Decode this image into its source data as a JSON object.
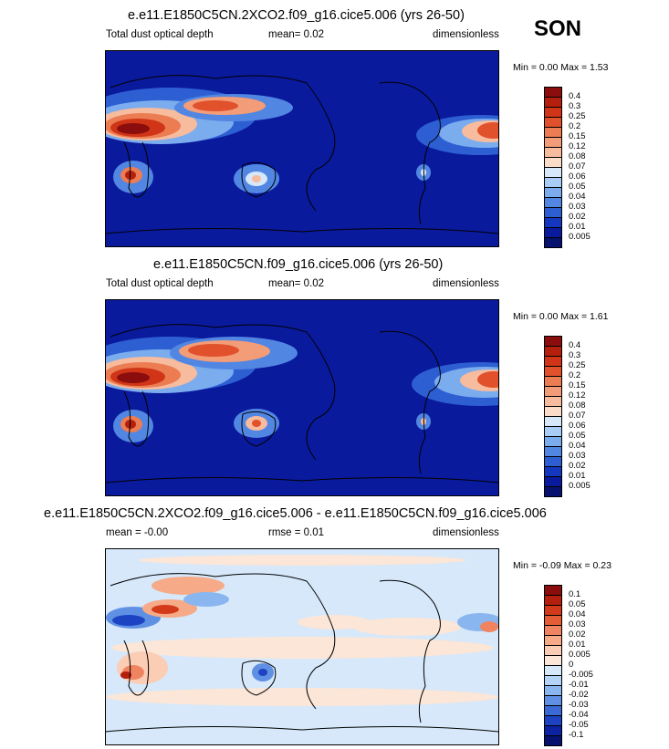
{
  "season": "SON",
  "panels": [
    {
      "title": "e.e11.E1850C5CN.2XCO2.f09_g16.cice5.006 (yrs 26-50)",
      "left": "Total dust optical depth",
      "center": "mean=   0.02",
      "right": "dimensionless",
      "minmax": "Min =   0.00 Max =   1.53",
      "levels": [
        "0.4",
        "0.3",
        "0.25",
        "0.2",
        "0.15",
        "0.12",
        "0.08",
        "0.07",
        "0.06",
        "0.05",
        "0.04",
        "0.03",
        "0.02",
        "0.01",
        "0.005"
      ],
      "colors": [
        "#8b0d0d",
        "#b5200e",
        "#cf3516",
        "#e0512c",
        "#ec7c52",
        "#f39c78",
        "#f7bb9e",
        "#fbdcc8",
        "#d6e8fa",
        "#a9cdf6",
        "#7bacee",
        "#5186e2",
        "#2d5fd3",
        "#1437c0",
        "#0a1a9c",
        "#06126e"
      ],
      "background": "#0a1a9c"
    },
    {
      "title": "e.e11.E1850C5CN.f09_g16.cice5.006 (yrs 26-50)",
      "left": "Total dust optical depth",
      "center": "mean=   0.02",
      "right": "dimensionless",
      "minmax": "Min =   0.00 Max =   1.61",
      "levels": [
        "0.4",
        "0.3",
        "0.25",
        "0.2",
        "0.15",
        "0.12",
        "0.08",
        "0.07",
        "0.06",
        "0.05",
        "0.04",
        "0.03",
        "0.02",
        "0.01",
        "0.005"
      ],
      "colors": [
        "#8b0d0d",
        "#b5200e",
        "#cf3516",
        "#e0512c",
        "#ec7c52",
        "#f39c78",
        "#f7bb9e",
        "#fbdcc8",
        "#d6e8fa",
        "#a9cdf6",
        "#7bacee",
        "#5186e2",
        "#2d5fd3",
        "#1437c0",
        "#0a1a9c",
        "#06126e"
      ],
      "background": "#0a1a9c"
    },
    {
      "title": "e.e11.E1850C5CN.2XCO2.f09_g16.cice5.006 - e.e11.E1850C5CN.f09_g16.cice5.006",
      "left": "mean =  -0.00",
      "center": "rmse =   0.01",
      "right": "dimensionless",
      "minmax": "Min =  -0.09 Max =   0.23",
      "levels": [
        "0.1",
        "0.05",
        "0.04",
        "0.03",
        "0.02",
        "0.01",
        "0.005",
        "0",
        "-0.005",
        "-0.01",
        "-0.02",
        "-0.03",
        "-0.04",
        "-0.05",
        "-0.1"
      ],
      "colors": [
        "#8b0d0d",
        "#b5200e",
        "#d23a1a",
        "#e45d34",
        "#f08460",
        "#f6aa88",
        "#fbcdb4",
        "#fbe6d8",
        "#d6e8fa",
        "#b3d3f7",
        "#8ab6f0",
        "#5f90e4",
        "#3b6ad6",
        "#1d43c2",
        "#0d22a0",
        "#06126e"
      ],
      "background": "#d6e8fa"
    }
  ]
}
